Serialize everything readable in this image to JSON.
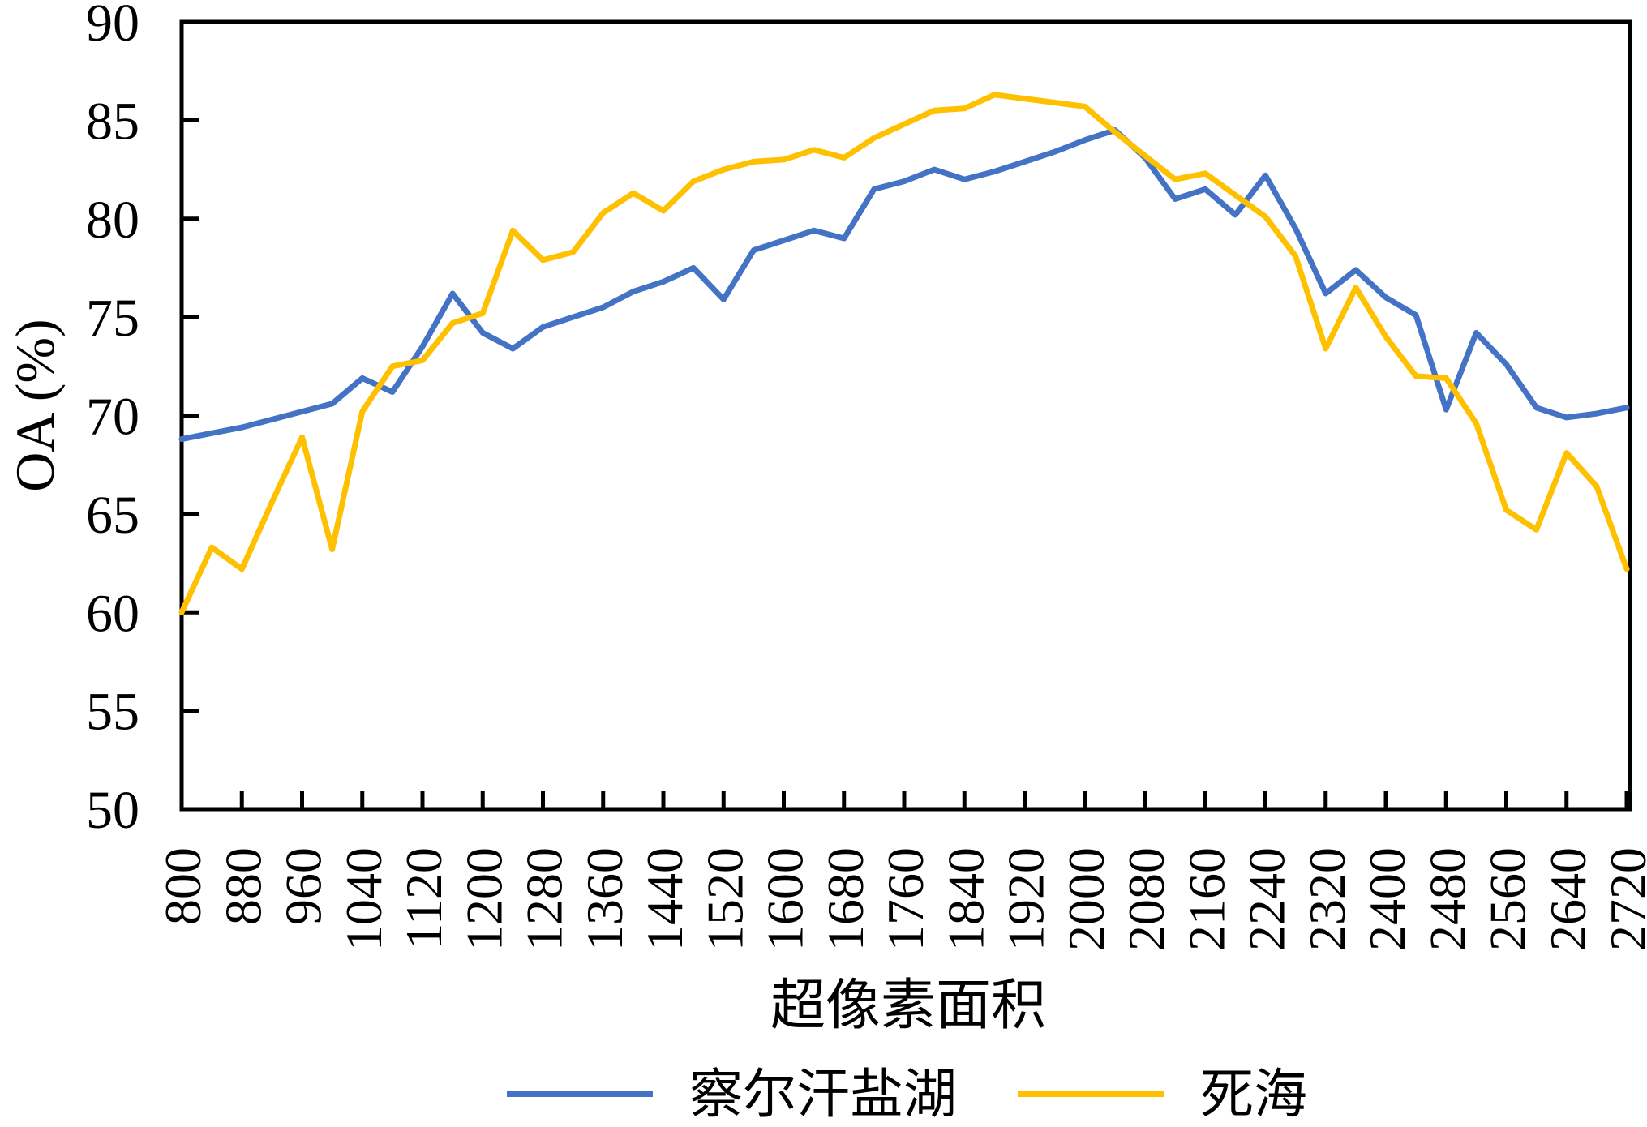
{
  "chart_data": {
    "type": "line",
    "title": "",
    "xlabel": "超像素面积",
    "ylabel": "OA (%)",
    "xlim": [
      800,
      2720
    ],
    "ylim": [
      50,
      90
    ],
    "grid": false,
    "legend_position": "bottom",
    "x": [
      800,
      840,
      880,
      920,
      960,
      1000,
      1040,
      1080,
      1120,
      1160,
      1200,
      1240,
      1280,
      1320,
      1360,
      1400,
      1440,
      1480,
      1520,
      1560,
      1600,
      1640,
      1680,
      1720,
      1760,
      1800,
      1840,
      1880,
      1920,
      1960,
      2000,
      2040,
      2080,
      2120,
      2160,
      2200,
      2240,
      2280,
      2320,
      2360,
      2400,
      2440,
      2480,
      2520,
      2560,
      2600,
      2640,
      2680,
      2720
    ],
    "series": [
      {
        "name": "察尔汗盐湖",
        "color": "#4472C4",
        "values": [
          68.8,
          69.1,
          69.4,
          69.8,
          70.2,
          70.6,
          71.9,
          71.2,
          73.5,
          76.2,
          74.2,
          73.4,
          74.5,
          75.0,
          75.5,
          76.3,
          76.8,
          77.5,
          75.9,
          78.4,
          78.9,
          79.4,
          79.0,
          81.5,
          81.9,
          82.5,
          82.0,
          82.4,
          82.9,
          83.4,
          84.0,
          84.5,
          83.1,
          81.0,
          81.5,
          80.2,
          82.2,
          79.5,
          76.2,
          77.4,
          76.0,
          75.1,
          70.3,
          74.2,
          72.6,
          70.4,
          69.9,
          70.1,
          70.4
        ]
      },
      {
        "name": "死海",
        "color": "#FFC000",
        "values": [
          60.0,
          63.3,
          62.2,
          65.6,
          68.9,
          63.2,
          70.2,
          72.5,
          72.8,
          74.7,
          75.2,
          79.4,
          77.9,
          78.3,
          80.3,
          81.3,
          80.4,
          81.9,
          82.5,
          82.9,
          83.0,
          83.5,
          83.1,
          84.1,
          84.8,
          85.5,
          85.6,
          86.3,
          86.1,
          85.9,
          85.7,
          84.4,
          83.2,
          82.0,
          82.3,
          81.2,
          80.1,
          78.1,
          73.4,
          76.5,
          74.0,
          72.0,
          71.9,
          69.6,
          65.2,
          64.2,
          68.1,
          66.4,
          62.2
        ]
      }
    ],
    "xticks": [
      800,
      880,
      960,
      1040,
      1120,
      1200,
      1280,
      1360,
      1440,
      1520,
      1600,
      1680,
      1760,
      1840,
      1920,
      2000,
      2080,
      2160,
      2240,
      2320,
      2400,
      2480,
      2560,
      2640,
      2720
    ],
    "yticks": [
      90,
      85,
      80,
      75,
      70,
      65,
      60,
      55,
      50
    ]
  },
  "axis_color": "#000000",
  "background_color": "#ffffff"
}
